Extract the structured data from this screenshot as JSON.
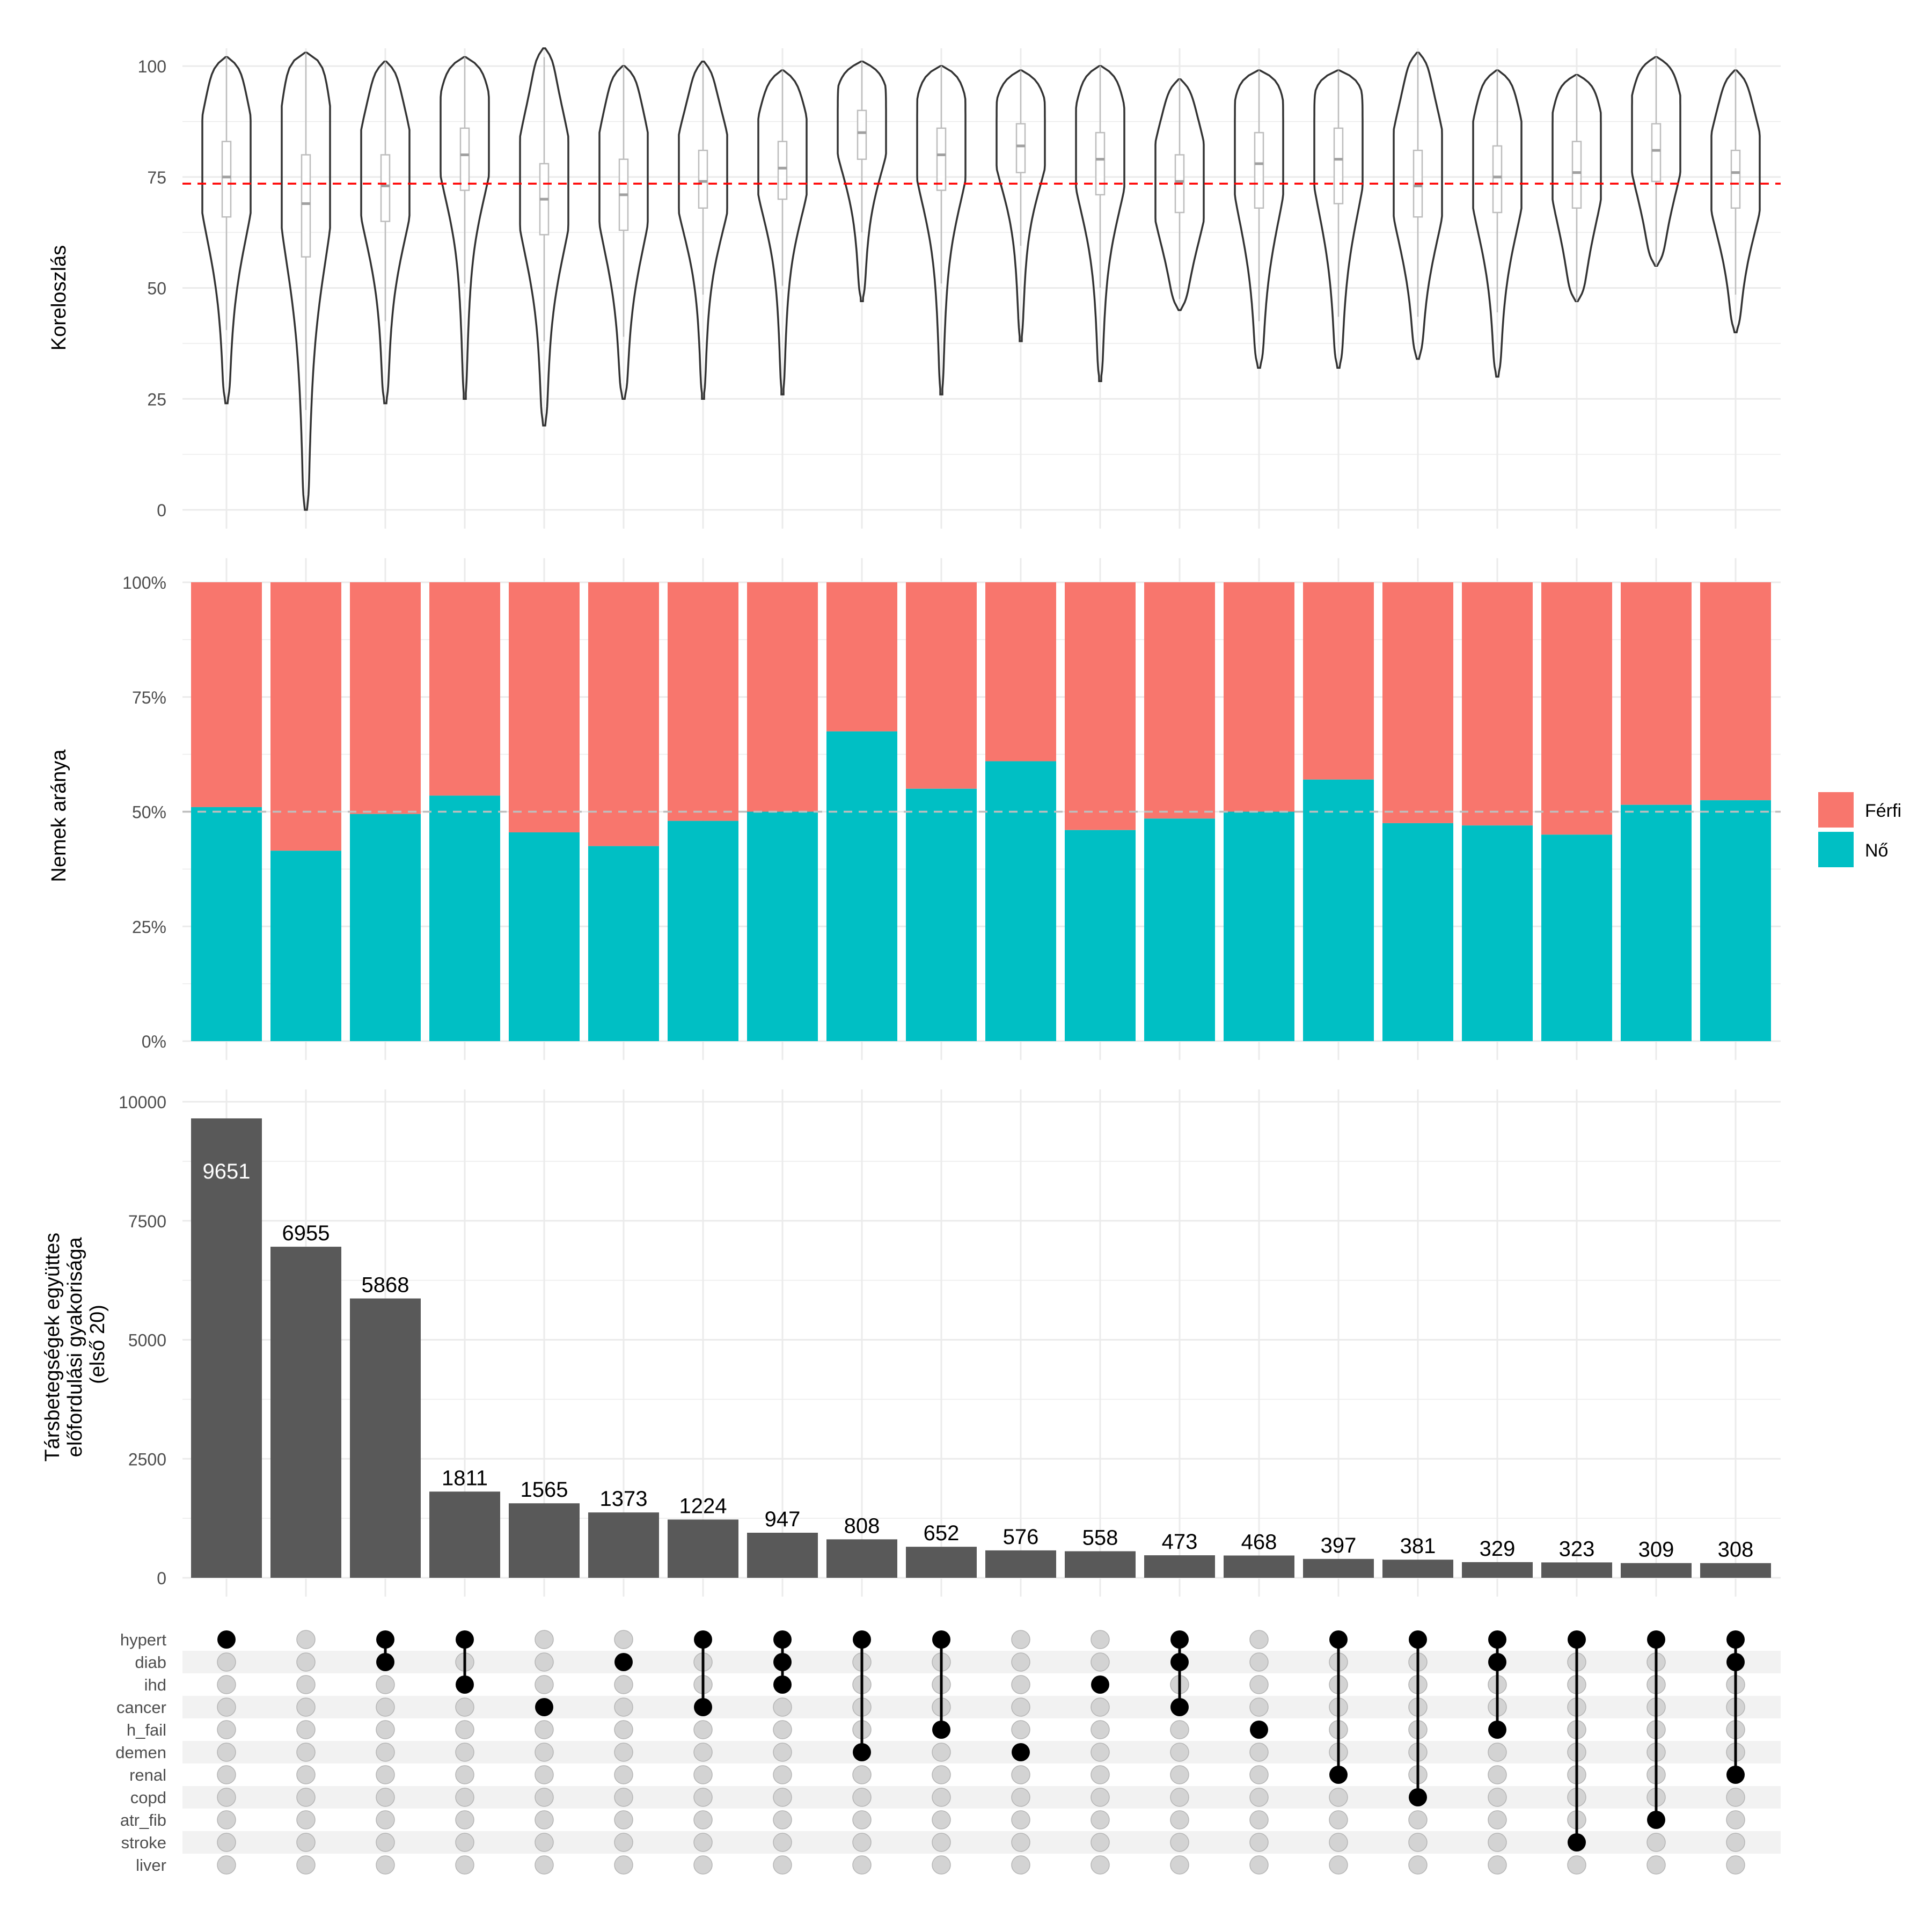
{
  "colors": {
    "female": "#00BFC4",
    "male": "#F8766D",
    "bar": "#595959",
    "dot_on": "#000000",
    "dot_off": "#D3D3D3",
    "mean_line": "#FF0000",
    "ref_line": "#BEBEBE",
    "grid": "#EBEBEB",
    "stripe": "#F2F2F2",
    "text": "#4D4D4D"
  },
  "chart_data": [
    {
      "panel": "violin",
      "type": "violin",
      "ylabel": "Koreloszlás",
      "ylim": [
        0,
        104
      ],
      "yticks": [
        "0",
        "25",
        "50",
        "75",
        "100"
      ],
      "mean_line": 73.5,
      "groups": [
        {
          "min": 24,
          "max": 102,
          "q1": 66,
          "median": 75,
          "q3": 83,
          "mode": 78
        },
        {
          "min": 0,
          "max": 103,
          "q1": 57,
          "median": 69,
          "q3": 80,
          "mode": 78
        },
        {
          "min": 24,
          "max": 101,
          "q1": 65,
          "median": 73,
          "q3": 80,
          "mode": 76
        },
        {
          "min": 25,
          "max": 102,
          "q1": 72,
          "median": 80,
          "q3": 86,
          "mode": 85
        },
        {
          "min": 19,
          "max": 104,
          "q1": 62,
          "median": 70,
          "q3": 78,
          "mode": 74
        },
        {
          "min": 25,
          "max": 100,
          "q1": 63,
          "median": 71,
          "q3": 79,
          "mode": 75
        },
        {
          "min": 25,
          "max": 101,
          "q1": 68,
          "median": 74,
          "q3": 81,
          "mode": 76
        },
        {
          "min": 26,
          "max": 99,
          "q1": 70,
          "median": 77,
          "q3": 83,
          "mode": 80
        },
        {
          "min": 47,
          "max": 101,
          "q1": 79,
          "median": 85,
          "q3": 90,
          "mode": 88
        },
        {
          "min": 26,
          "max": 100,
          "q1": 72,
          "median": 80,
          "q3": 86,
          "mode": 84
        },
        {
          "min": 38,
          "max": 99,
          "q1": 76,
          "median": 82,
          "q3": 87,
          "mode": 85
        },
        {
          "min": 29,
          "max": 100,
          "q1": 71,
          "median": 79,
          "q3": 85,
          "mode": 82
        },
        {
          "min": 45,
          "max": 97,
          "q1": 67,
          "median": 74,
          "q3": 80,
          "mode": 74
        },
        {
          "min": 32,
          "max": 99,
          "q1": 68,
          "median": 78,
          "q3": 85,
          "mode": 82
        },
        {
          "min": 32,
          "max": 99,
          "q1": 69,
          "median": 79,
          "q3": 86,
          "mode": 84
        },
        {
          "min": 34,
          "max": 103,
          "q1": 66,
          "median": 73,
          "q3": 81,
          "mode": 76
        },
        {
          "min": 30,
          "max": 99,
          "q1": 67,
          "median": 75,
          "q3": 82,
          "mode": 78
        },
        {
          "min": 47,
          "max": 98,
          "q1": 68,
          "median": 76,
          "q3": 83,
          "mode": 80
        },
        {
          "min": 55,
          "max": 102,
          "q1": 74,
          "median": 81,
          "q3": 87,
          "mode": 85
        },
        {
          "min": 40,
          "max": 99,
          "q1": 68,
          "median": 76,
          "q3": 81,
          "mode": 76
        }
      ]
    },
    {
      "panel": "sex",
      "type": "bar",
      "stacked": true,
      "ylabel": "Nemek aránya",
      "ylim": [
        0,
        100
      ],
      "yticks": [
        "0%",
        "25%",
        "50%",
        "75%",
        "100%"
      ],
      "ref_line": 50,
      "series": [
        {
          "name": "Nő",
          "values": [
            51,
            41.5,
            49.5,
            53.5,
            45.5,
            42.5,
            48,
            50,
            67.5,
            55,
            61,
            46,
            48.5,
            50,
            57,
            47.5,
            47,
            45,
            51.5,
            52.5
          ]
        },
        {
          "name": "Férfi",
          "values": [
            49,
            58.5,
            50.5,
            46.5,
            54.5,
            57.5,
            52,
            50,
            32.5,
            45,
            39,
            54,
            51.5,
            50,
            43,
            52.5,
            53,
            55,
            48.5,
            47.5
          ]
        }
      ],
      "legend": {
        "position": "right",
        "labels": [
          "Férfi",
          "Nő"
        ]
      }
    },
    {
      "panel": "counts",
      "type": "bar",
      "ylabel_lines": [
        "Társbetegségek együttes",
        "előfordulási gyakorisága",
        "(első 20)"
      ],
      "ylim": [
        0,
        10000
      ],
      "yticks": [
        "0",
        "2500",
        "5000",
        "7500",
        "10000"
      ],
      "values": [
        9651,
        6955,
        5868,
        1811,
        1565,
        1373,
        1224,
        947,
        808,
        652,
        576,
        558,
        473,
        468,
        397,
        381,
        329,
        323,
        309,
        308
      ],
      "labels": [
        "9651",
        "6955",
        "5868",
        "1811",
        "1565",
        "1373",
        "1224",
        "947",
        "808",
        "652",
        "576",
        "558",
        "473",
        "468",
        "397",
        "381",
        "329",
        "323",
        "309",
        "308"
      ]
    },
    {
      "panel": "matrix",
      "type": "matrix",
      "sets": [
        "hypert",
        "diab",
        "ihd",
        "cancer",
        "h_fail",
        "demen",
        "renal",
        "copd",
        "atr_fib",
        "stroke",
        "liver"
      ],
      "combinations": [
        [
          "hypert"
        ],
        [],
        [
          "hypert",
          "diab"
        ],
        [
          "hypert",
          "ihd"
        ],
        [
          "cancer"
        ],
        [
          "diab"
        ],
        [
          "hypert",
          "cancer"
        ],
        [
          "hypert",
          "diab",
          "ihd"
        ],
        [
          "hypert",
          "demen"
        ],
        [
          "hypert",
          "h_fail"
        ],
        [
          "demen"
        ],
        [
          "ihd"
        ],
        [
          "hypert",
          "diab",
          "cancer"
        ],
        [
          "h_fail"
        ],
        [
          "hypert",
          "renal"
        ],
        [
          "hypert",
          "copd"
        ],
        [
          "hypert",
          "diab",
          "h_fail"
        ],
        [
          "hypert",
          "stroke"
        ],
        [
          "hypert",
          "atr_fib"
        ],
        [
          "hypert",
          "diab",
          "renal"
        ]
      ]
    }
  ]
}
